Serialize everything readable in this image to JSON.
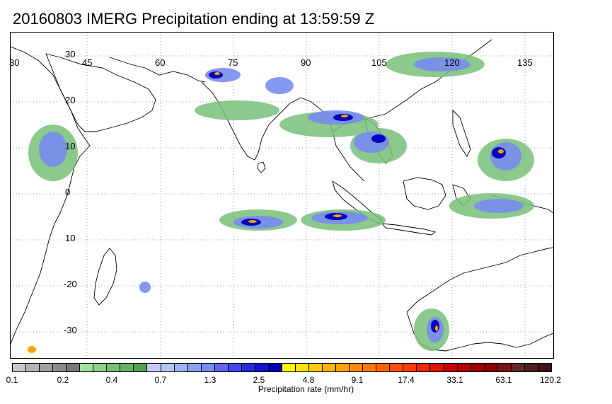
{
  "title": "20160803 IMERG Precipitation ending at 13:59:59 Z",
  "map": {
    "lon_labels": [
      "30",
      "45",
      "60",
      "75",
      "90",
      "105",
      "120",
      "135"
    ],
    "lat_labels": [
      "30",
      "20",
      "10",
      "0",
      "10",
      "-20",
      "-30"
    ],
    "lon_range": [
      30,
      141
    ],
    "lat_range": [
      -38,
      36
    ],
    "grid": "dotted"
  },
  "colorbar": {
    "label": "Precipitation rate (mm/hr)",
    "tick_labels": [
      "0.1",
      "0.2",
      "0.4",
      "0.7",
      "1.3",
      "2.5",
      "4.8",
      "9.1",
      "17.4",
      "33.1",
      "63.1",
      "120.2"
    ],
    "colors": [
      "#c8c8c8",
      "#b4b4b4",
      "#a0a0a0",
      "#8c8c8c",
      "#787878",
      "#a0e0a0",
      "#8cd08c",
      "#78c078",
      "#64b064",
      "#50a050",
      "#c8c8ff",
      "#b4c8f0",
      "#a0b4f0",
      "#8ca0f0",
      "#788cf0",
      "#6464f0",
      "#4646f0",
      "#2828e6",
      "#1414d2",
      "#0000be",
      "#ffff00",
      "#ffe600",
      "#ffc800",
      "#ffb400",
      "#ffa000",
      "#ff8c00",
      "#ff7800",
      "#ff6400",
      "#ff5000",
      "#ff3c00",
      "#f02800",
      "#dc1400",
      "#c80000",
      "#b40000",
      "#a00000",
      "#8c0000",
      "#781414",
      "#642828",
      "#501e1e",
      "#3c1414"
    ]
  }
}
